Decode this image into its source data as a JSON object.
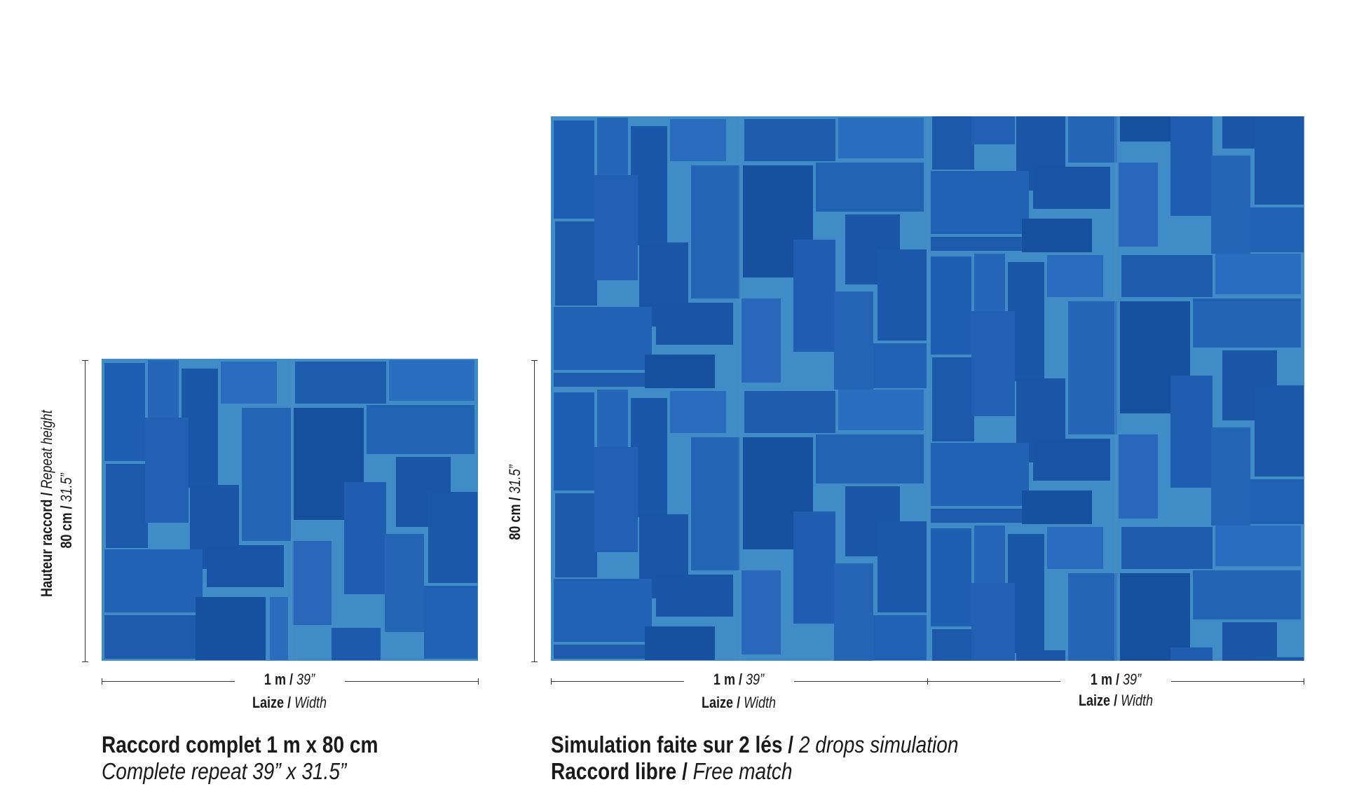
{
  "colors": {
    "tile_base": "#1c5bb0",
    "tile_light": "#3a8fd0",
    "tile_dark": "#123f8a",
    "seam": "#4aa0c8"
  },
  "left": {
    "height_label_fr": "Hauteur raccord / ",
    "height_label_en": "Repeat height",
    "height_value_fr": "80 cm / ",
    "height_value_en": "31.5”",
    "width_value_fr": "1 m / ",
    "width_value_en": "39”",
    "width_label_fr": "Laize / ",
    "width_label_en": "Width",
    "caption_line1": "Raccord complet 1 m x 80 cm",
    "caption_line2": "Complete repeat 39” x 31.5”"
  },
  "right": {
    "height_value_fr": "80 cm / ",
    "height_value_en": "31.5”",
    "drops": [
      {
        "width_value_fr": "1 m / ",
        "width_value_en": "39”",
        "width_label_fr": "Laize / ",
        "width_label_en": "Width"
      },
      {
        "width_value_fr": "1 m / ",
        "width_value_en": "39”",
        "width_label_fr": "Laize / ",
        "width_label_en": "Width"
      }
    ],
    "caption_line1_fr": "Simulation faite sur 2 lés / ",
    "caption_line1_en": "2 drops simulation",
    "caption_line2_fr": "Raccord libre / ",
    "caption_line2_en": "Free match"
  }
}
